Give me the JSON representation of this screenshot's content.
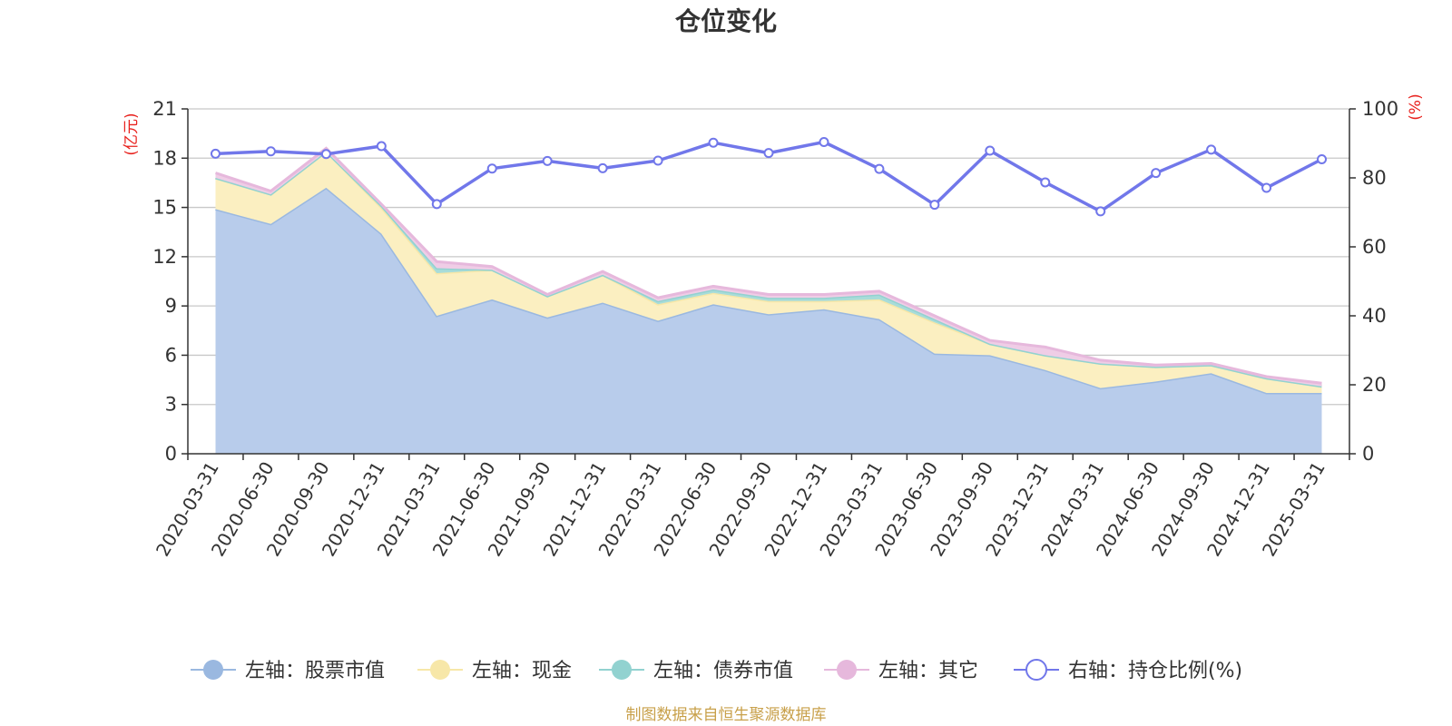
{
  "chart_data": {
    "type": "area",
    "title": "仓位变化",
    "y_left": {
      "unit": "(亿元)",
      "ticks": [
        0,
        3,
        6,
        9,
        12,
        15,
        18,
        21
      ],
      "range": [
        0,
        21
      ]
    },
    "y_right": {
      "unit": "(%)",
      "ticks": [
        0,
        20,
        40,
        60,
        80,
        100
      ],
      "range": [
        0,
        100
      ]
    },
    "categories": [
      "2020-03-31",
      "2020-06-30",
      "2020-09-30",
      "2020-12-31",
      "2021-03-31",
      "2021-06-30",
      "2021-09-30",
      "2021-12-31",
      "2022-03-31",
      "2022-06-30",
      "2022-09-30",
      "2022-12-31",
      "2023-03-31",
      "2023-06-30",
      "2023-09-30",
      "2023-12-31",
      "2024-03-31",
      "2024-06-30",
      "2024-09-30",
      "2024-12-31",
      "2025-03-31"
    ],
    "series": [
      {
        "name": "左轴：股票市值",
        "axis": "left",
        "stack": true,
        "color": "#9ab8e0",
        "fill": "#b8cceb",
        "values": [
          14.9,
          14.0,
          16.2,
          13.4,
          8.4,
          9.4,
          8.3,
          9.2,
          8.1,
          9.1,
          8.5,
          8.8,
          8.2,
          6.1,
          6.0,
          5.1,
          4.0,
          4.4,
          4.9,
          3.7,
          3.7
        ]
      },
      {
        "name": "左轴：现金",
        "axis": "left",
        "stack": true,
        "color": "#f7e7a8",
        "fill": "#fbefc1",
        "values": [
          1.9,
          1.8,
          2.2,
          1.6,
          2.6,
          1.8,
          1.3,
          1.7,
          1.0,
          0.7,
          0.8,
          0.5,
          1.2,
          1.9,
          0.7,
          0.9,
          1.5,
          0.9,
          0.5,
          0.9,
          0.4
        ]
      },
      {
        "name": "左轴：债券市值",
        "axis": "left",
        "stack": true,
        "color": "#92d2d0",
        "fill": "#a8dcd9",
        "values": [
          0,
          0,
          0,
          0.1,
          0.3,
          0,
          0,
          0,
          0.2,
          0.2,
          0.2,
          0.2,
          0.3,
          0.2,
          0,
          0,
          0,
          0,
          0,
          0,
          0
        ]
      },
      {
        "name": "左轴：其它",
        "axis": "left",
        "stack": true,
        "color": "#e6b8dc",
        "fill": "#efcde6",
        "values": [
          0.3,
          0.2,
          0.2,
          0.1,
          0.4,
          0.2,
          0.1,
          0.2,
          0.2,
          0.2,
          0.2,
          0.2,
          0.2,
          0.2,
          0.2,
          0.5,
          0.2,
          0.1,
          0.1,
          0.1,
          0.2
        ]
      },
      {
        "name": "右轴：持仓比例(%)",
        "axis": "right",
        "stack": false,
        "color": "#7177ea",
        "values": [
          87.0,
          87.7,
          86.9,
          89.2,
          72.4,
          82.7,
          84.9,
          82.8,
          85.0,
          90.2,
          87.2,
          90.4,
          82.6,
          72.2,
          87.9,
          78.7,
          70.3,
          81.4,
          88.2,
          77.1,
          85.4
        ]
      }
    ],
    "legend_position": "bottom",
    "source": "制图数据来自恒生聚源数据库",
    "colors": {
      "axis_unit": "#e8211d",
      "source": "#c8a04a",
      "grid": "#c8c8c8",
      "axis": "#333333"
    }
  }
}
